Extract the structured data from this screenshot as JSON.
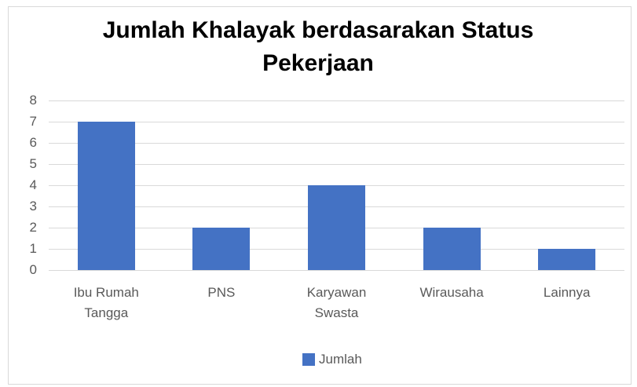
{
  "chart_data": {
    "type": "bar",
    "title": "Jumlah Khalayak berdasarakan Status Pekerjaan",
    "categories": [
      "Ibu Rumah Tangga",
      "PNS",
      "Karyawan Swasta",
      "Wirausaha",
      "Lainnya"
    ],
    "series": [
      {
        "name": "Jumlah",
        "color": "#4472c4",
        "values": [
          7,
          2,
          4,
          2,
          1
        ]
      }
    ],
    "ylim": [
      0,
      8
    ],
    "yticks": [
      0,
      1,
      2,
      3,
      4,
      5,
      6,
      7,
      8
    ],
    "grid": true,
    "legend": "bottom"
  }
}
